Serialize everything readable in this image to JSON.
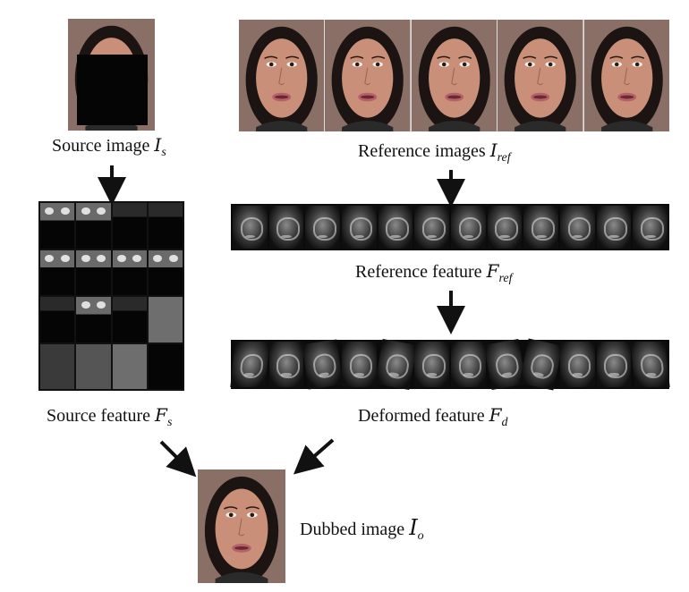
{
  "labels": {
    "source_image": "Source image ",
    "source_image_sym": "I",
    "source_image_sub": "s",
    "reference_images": "Reference images ",
    "reference_images_sym": "I",
    "reference_images_sub": "ref",
    "reference_feature": "Reference feature ",
    "reference_feature_sym": "F",
    "reference_feature_sub": "ref",
    "source_feature": "Source feature ",
    "source_feature_sym": "F",
    "source_feature_sub": "s",
    "deformed_feature": "Deformed feature ",
    "deformed_feature_sym": "F",
    "deformed_feature_sub": "d",
    "dubbed_image": "Dubbed image ",
    "dubbed_image_sym": "I",
    "dubbed_image_sub": "o"
  },
  "colors": {
    "skin": "#c98f78",
    "hair": "#1c1412",
    "background": "#8a6f66",
    "mask": "#050505",
    "lips": "#b5606a",
    "arrow": "#111111"
  },
  "reference_image_count": 5,
  "reference_feature_count": 12,
  "deformed_feature_count": 12
}
